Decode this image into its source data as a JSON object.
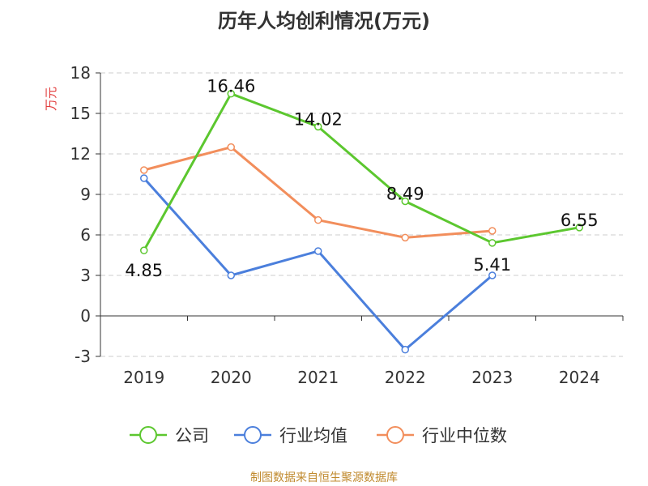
{
  "chart_data": {
    "type": "line",
    "title": "历年人均创利情况(万元)",
    "ylabel": "万元",
    "categories": [
      "2019",
      "2020",
      "2021",
      "2022",
      "2023",
      "2024"
    ],
    "ylim": [
      -3,
      18
    ],
    "yticks": [
      -3,
      0,
      3,
      6,
      9,
      12,
      15,
      18
    ],
    "grid": true,
    "legend_position": "bottom",
    "series": [
      {
        "name": "公司",
        "color": "#5cc72f",
        "values": [
          4.85,
          16.46,
          14.02,
          8.49,
          5.41,
          6.55
        ],
        "labels": [
          "4.85",
          "16.46",
          "14.02",
          "8.49",
          "5.41",
          "6.55"
        ]
      },
      {
        "name": "行业均值",
        "color": "#4b7fdc",
        "values": [
          10.2,
          3.0,
          4.8,
          -2.5,
          3.0,
          null
        ]
      },
      {
        "name": "行业中位数",
        "color": "#f28e5c",
        "values": [
          10.8,
          12.5,
          7.1,
          5.8,
          6.3,
          null
        ]
      }
    ]
  },
  "source": "制图数据来自恒生聚源数据库"
}
